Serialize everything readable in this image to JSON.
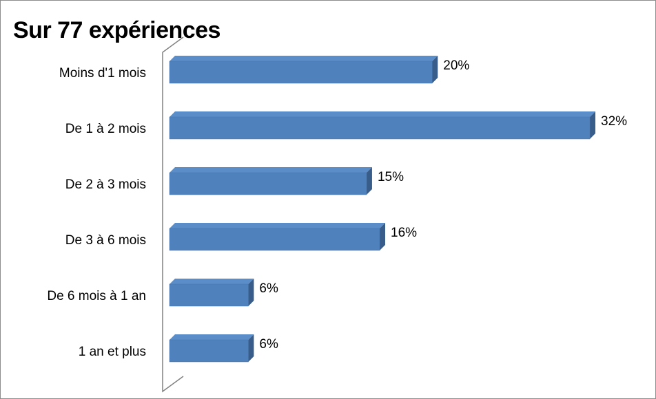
{
  "chart_data": {
    "type": "bar",
    "orientation": "horizontal",
    "style": "3d",
    "title": "Sur 77 expériences",
    "categories": [
      "Moins d'1 mois",
      "De 1 à 2 mois",
      "De 2 à 3 mois",
      "De 3 à 6 mois",
      "De 6 mois à 1 an",
      "1 an et plus"
    ],
    "values": [
      20,
      32,
      15,
      16,
      6,
      6
    ],
    "data_labels": [
      "20%",
      "32%",
      "15%",
      "16%",
      "6%",
      "6%"
    ],
    "unit": "%",
    "xlim": [
      0,
      32
    ],
    "grid": false,
    "legend": "none",
    "colors": {
      "bar_front": "#4f81bd",
      "bar_top": "#5b8dc8",
      "bar_side": "#385d8a",
      "axis_wall": "#808080",
      "frame": "#8c8c8c"
    }
  }
}
